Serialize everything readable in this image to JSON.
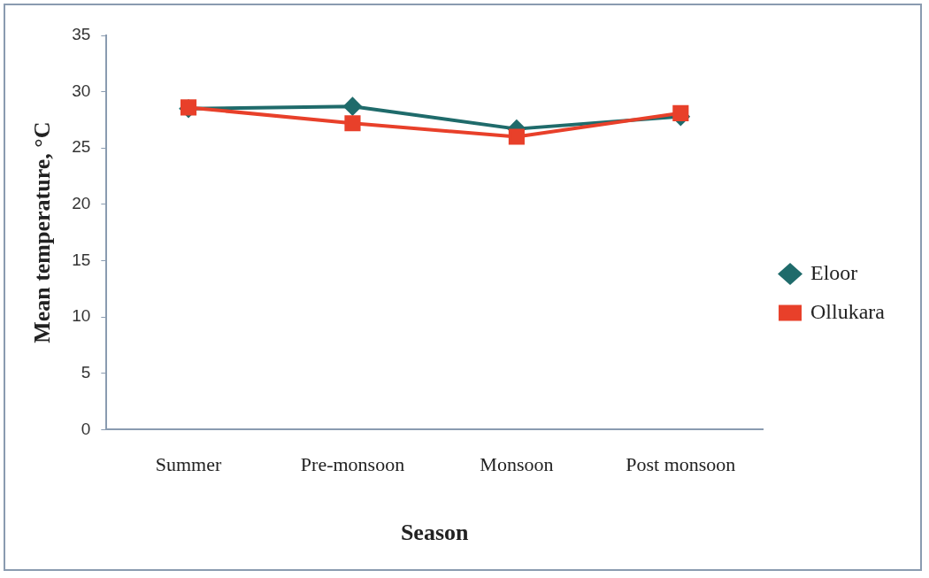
{
  "chart_data": {
    "type": "line",
    "xlabel": "Season",
    "ylabel": "Mean temperature, °C",
    "categories": [
      "Summer",
      "Pre-monsoon",
      "Monsoon",
      "Post monsoon"
    ],
    "series": [
      {
        "name": "Eloor",
        "color": "#1f6b6b",
        "marker": "diamond",
        "values": [
          28.5,
          28.7,
          26.7,
          27.8
        ]
      },
      {
        "name": "Ollukara",
        "color": "#e8402a",
        "marker": "square",
        "values": [
          28.6,
          27.2,
          26.0,
          28.1
        ]
      }
    ],
    "ylim": [
      0,
      35
    ],
    "yticks": [
      0,
      5,
      10,
      15,
      20,
      25,
      30,
      35
    ],
    "grid": false,
    "legend": "right",
    "line_style": "solid"
  }
}
